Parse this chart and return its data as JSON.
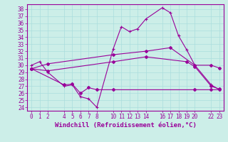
{
  "xlabel": "Windchill (Refroidissement éolien,°C)",
  "background_color": "#cceee8",
  "line_color": "#990099",
  "ylim": [
    23.5,
    38.7
  ],
  "xlim": [
    -0.5,
    23.5
  ],
  "yticks": [
    24,
    25,
    26,
    27,
    28,
    29,
    30,
    31,
    32,
    33,
    34,
    35,
    36,
    37,
    38
  ],
  "xticks": [
    0,
    1,
    2,
    4,
    5,
    6,
    7,
    8,
    10,
    11,
    12,
    13,
    14,
    16,
    17,
    18,
    19,
    20,
    22,
    23
  ],
  "line1_x": [
    0,
    1,
    2,
    4,
    5,
    6,
    7,
    8,
    10,
    11,
    12,
    13,
    14,
    16,
    17,
    18,
    19,
    20,
    22,
    23
  ],
  "line1_y": [
    30.0,
    30.5,
    29.0,
    27.0,
    27.2,
    25.5,
    25.2,
    24.0,
    32.3,
    35.5,
    34.8,
    35.2,
    36.6,
    38.2,
    37.5,
    34.2,
    32.2,
    30.0,
    27.2,
    26.5
  ],
  "line2_x": [
    0,
    2,
    10,
    14,
    17,
    20,
    22,
    23
  ],
  "line2_y": [
    29.5,
    30.2,
    31.5,
    32.0,
    32.5,
    30.0,
    30.0,
    29.6
  ],
  "line3_x": [
    0,
    4,
    5,
    6,
    7,
    8,
    10,
    20,
    22,
    23
  ],
  "line3_y": [
    29.5,
    27.2,
    27.3,
    26.0,
    26.8,
    26.5,
    26.5,
    26.5,
    26.5,
    26.5
  ],
  "line4_x": [
    0,
    2,
    10,
    14,
    19,
    20,
    22,
    23
  ],
  "line4_y": [
    29.5,
    29.2,
    30.5,
    31.2,
    30.5,
    29.8,
    27.0,
    26.6
  ],
  "tick_fontsize": 5.5,
  "xlabel_fontsize": 6.5
}
